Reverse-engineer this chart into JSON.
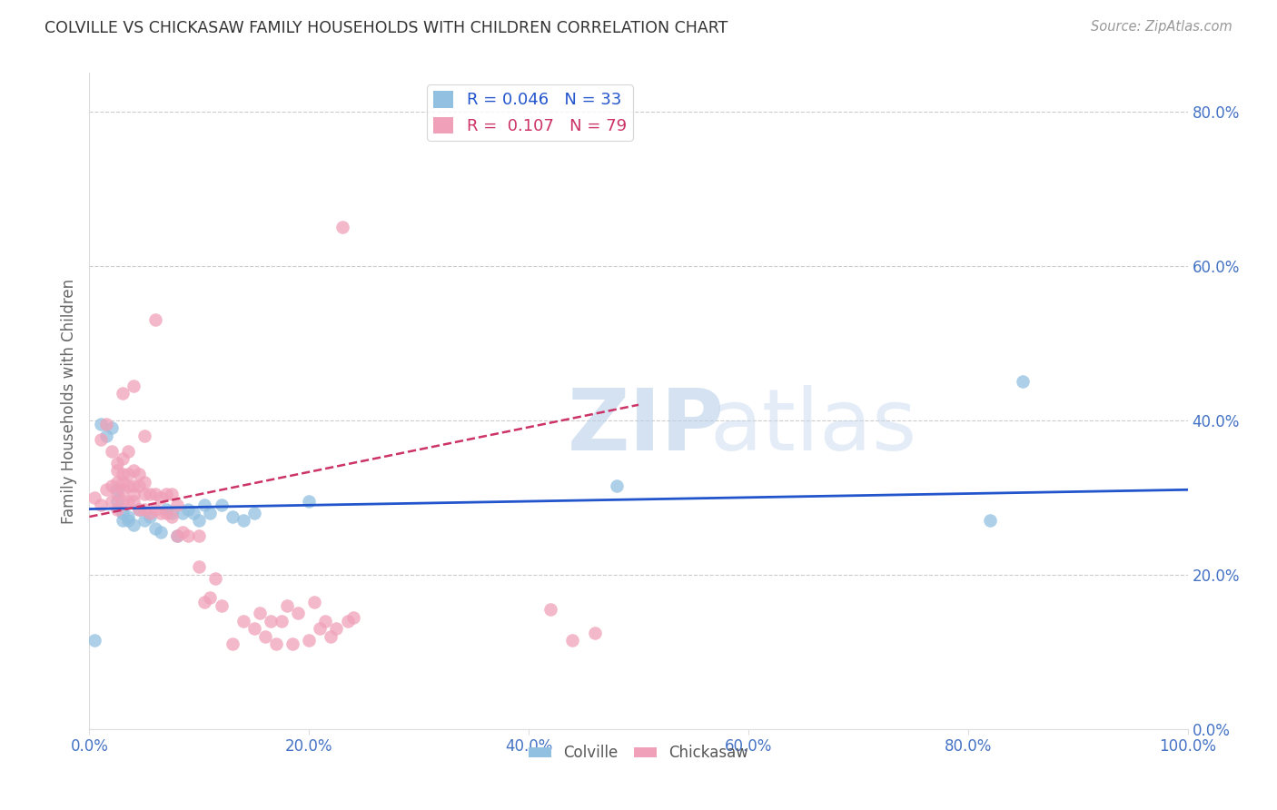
{
  "title": "COLVILLE VS CHICKASAW FAMILY HOUSEHOLDS WITH CHILDREN CORRELATION CHART",
  "source": "Source: ZipAtlas.com",
  "ylabel": "Family Households with Children",
  "xlim": [
    0.0,
    1.0
  ],
  "ylim": [
    0.0,
    0.85
  ],
  "yticks": [
    0.0,
    0.2,
    0.4,
    0.6,
    0.8
  ],
  "xticks": [
    0.0,
    0.2,
    0.4,
    0.6,
    0.8,
    1.0
  ],
  "background_color": "#ffffff",
  "colville_color": "#92c0e0",
  "chickasaw_color": "#f0a0b8",
  "colville_line_color": "#2255cc",
  "chickasaw_line_color": "#cc3366",
  "colville_R": 0.046,
  "colville_N": 33,
  "chickasaw_R": 0.107,
  "chickasaw_N": 79,
  "colville_x": [
    0.005,
    0.01,
    0.015,
    0.02,
    0.025,
    0.025,
    0.03,
    0.03,
    0.035,
    0.035,
    0.04,
    0.045,
    0.05,
    0.055,
    0.06,
    0.065,
    0.07,
    0.075,
    0.08,
    0.085,
    0.09,
    0.095,
    0.1,
    0.105,
    0.11,
    0.12,
    0.13,
    0.14,
    0.15,
    0.2,
    0.48,
    0.82,
    0.85
  ],
  "colville_y": [
    0.115,
    0.395,
    0.38,
    0.39,
    0.295,
    0.31,
    0.27,
    0.28,
    0.27,
    0.275,
    0.265,
    0.285,
    0.27,
    0.275,
    0.26,
    0.255,
    0.285,
    0.28,
    0.25,
    0.28,
    0.285,
    0.28,
    0.27,
    0.29,
    0.28,
    0.29,
    0.275,
    0.27,
    0.28,
    0.295,
    0.315,
    0.27,
    0.45
  ],
  "chickasaw_x": [
    0.005,
    0.01,
    0.01,
    0.015,
    0.015,
    0.02,
    0.02,
    0.02,
    0.025,
    0.025,
    0.025,
    0.025,
    0.025,
    0.03,
    0.03,
    0.03,
    0.03,
    0.03,
    0.03,
    0.035,
    0.035,
    0.035,
    0.035,
    0.04,
    0.04,
    0.04,
    0.04,
    0.04,
    0.045,
    0.045,
    0.045,
    0.05,
    0.05,
    0.05,
    0.05,
    0.055,
    0.055,
    0.06,
    0.06,
    0.06,
    0.065,
    0.065,
    0.07,
    0.07,
    0.075,
    0.075,
    0.08,
    0.08,
    0.085,
    0.09,
    0.1,
    0.1,
    0.105,
    0.11,
    0.115,
    0.12,
    0.13,
    0.14,
    0.15,
    0.155,
    0.16,
    0.165,
    0.17,
    0.175,
    0.18,
    0.185,
    0.19,
    0.2,
    0.205,
    0.21,
    0.215,
    0.22,
    0.225,
    0.23,
    0.235,
    0.24,
    0.42,
    0.44,
    0.46
  ],
  "chickasaw_y": [
    0.3,
    0.29,
    0.375,
    0.31,
    0.395,
    0.295,
    0.315,
    0.36,
    0.305,
    0.32,
    0.335,
    0.345,
    0.285,
    0.295,
    0.31,
    0.32,
    0.33,
    0.35,
    0.435,
    0.295,
    0.315,
    0.33,
    0.36,
    0.295,
    0.305,
    0.315,
    0.335,
    0.445,
    0.285,
    0.315,
    0.33,
    0.285,
    0.305,
    0.32,
    0.38,
    0.28,
    0.305,
    0.285,
    0.305,
    0.53,
    0.28,
    0.3,
    0.28,
    0.305,
    0.275,
    0.305,
    0.25,
    0.29,
    0.255,
    0.25,
    0.25,
    0.21,
    0.165,
    0.17,
    0.195,
    0.16,
    0.11,
    0.14,
    0.13,
    0.15,
    0.12,
    0.14,
    0.11,
    0.14,
    0.16,
    0.11,
    0.15,
    0.115,
    0.165,
    0.13,
    0.14,
    0.12,
    0.13,
    0.65,
    0.14,
    0.145,
    0.155,
    0.115,
    0.125
  ]
}
